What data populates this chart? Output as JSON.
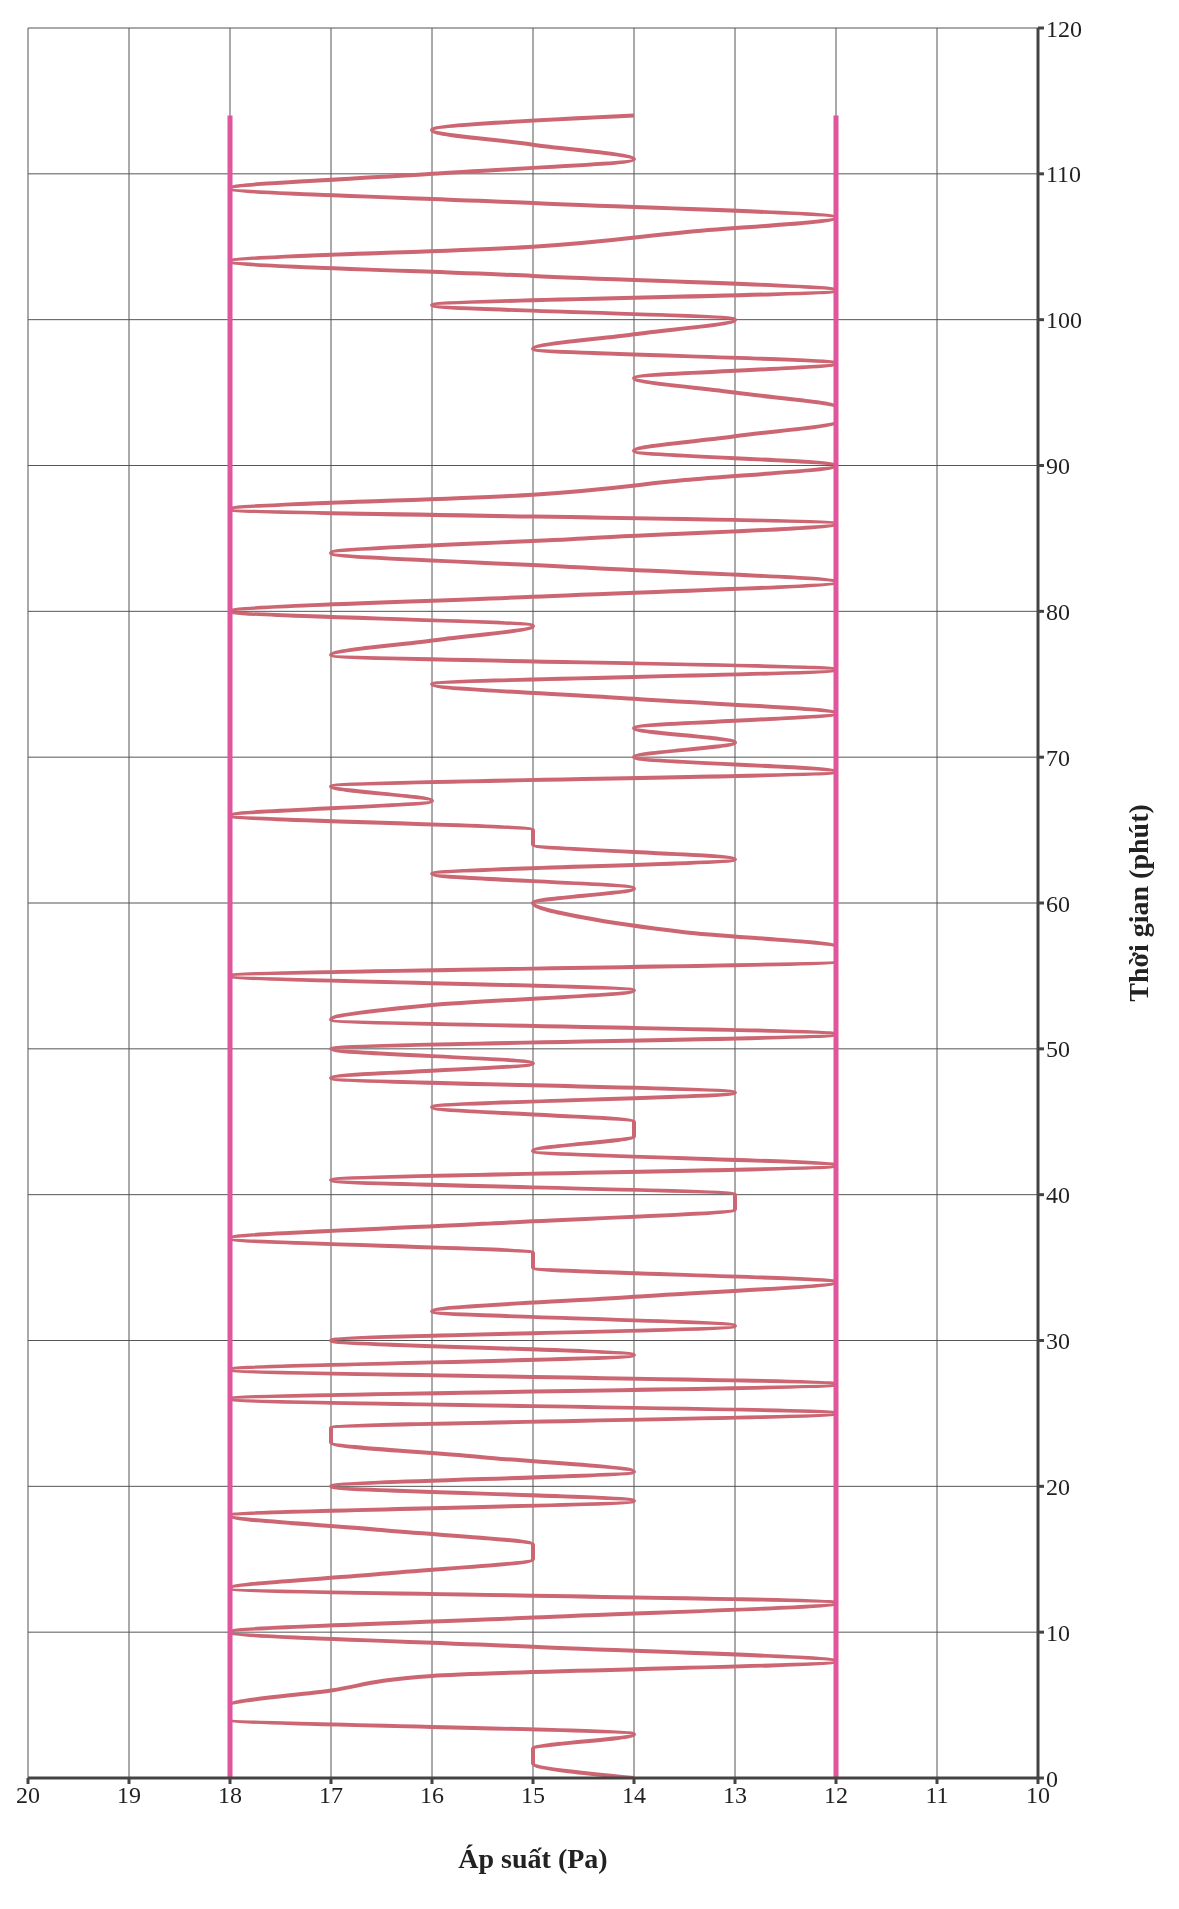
{
  "chart_data": {
    "type": "line",
    "xlabel": "Áp suất (Pa)",
    "ylabel": "Thời gian (phút)",
    "xlim": [
      20,
      10
    ],
    "xticks": [
      20,
      19,
      18,
      17,
      16,
      15,
      14,
      13,
      12,
      11,
      10
    ],
    "ylim": [
      0,
      120
    ],
    "yticks": [
      0,
      10,
      20,
      30,
      40,
      50,
      60,
      70,
      80,
      90,
      100,
      110,
      120
    ],
    "grid": true,
    "marker": "none",
    "line_style": "solid",
    "series": [
      {
        "color": "#cc6673",
        "x": [
          14,
          15,
          15,
          14,
          18,
          18,
          17,
          16,
          12,
          15,
          18,
          15,
          12,
          18,
          16.5,
          15,
          15,
          16.5,
          18,
          14,
          17,
          14,
          15.5,
          17,
          17,
          12,
          18,
          12,
          18,
          14,
          17,
          13,
          16,
          14,
          12,
          15,
          15,
          18,
          15.5,
          13,
          13,
          17,
          12,
          15,
          14,
          14,
          16,
          13,
          17,
          15,
          17,
          12,
          17,
          16,
          14,
          18,
          12,
          12,
          13.5,
          14.5,
          15,
          14,
          16,
          13,
          15,
          15,
          18,
          16,
          17,
          12,
          14,
          13,
          14,
          12,
          14,
          16,
          12,
          17,
          16,
          15,
          18,
          15,
          12,
          14.5,
          17,
          14.5,
          12,
          18,
          15,
          13.5,
          12,
          14,
          13,
          12,
          12,
          13,
          14,
          12,
          15,
          14,
          13,
          16,
          12,
          15,
          18,
          15,
          13.5,
          12,
          15,
          18,
          16,
          14,
          15,
          16,
          14
        ],
        "values": [
          0,
          1,
          2,
          3,
          4,
          5,
          6,
          7,
          8,
          9,
          10,
          11,
          12,
          13,
          14,
          15,
          16,
          17,
          18,
          19,
          20,
          21,
          22,
          23,
          24,
          25,
          26,
          27,
          28,
          29,
          30,
          31,
          32,
          33,
          34,
          35,
          36,
          37,
          38,
          39,
          40,
          41,
          42,
          43,
          44,
          45,
          46,
          47,
          48,
          49,
          50,
          51,
          52,
          53,
          54,
          55,
          56,
          57,
          58,
          59,
          60,
          61,
          62,
          63,
          64,
          65,
          66,
          67,
          68,
          69,
          70,
          71,
          72,
          73,
          74,
          75,
          76,
          77,
          78,
          79,
          80,
          81,
          82,
          83,
          84,
          85,
          86,
          87,
          88,
          89,
          90,
          91,
          92,
          93,
          94,
          95,
          96,
          97,
          98,
          99,
          100,
          101,
          102,
          103,
          104,
          105,
          106,
          107,
          108,
          109,
          110,
          111,
          112,
          113,
          114
        ]
      },
      {
        "type": "line",
        "color": "#e0559c",
        "x": [
          18,
          18,
          18
        ],
        "values": [
          0,
          57,
          114
        ]
      },
      {
        "type": "line",
        "color": "#e0559c",
        "x": [
          12,
          12,
          12
        ],
        "values": [
          0,
          57,
          114
        ]
      }
    ]
  }
}
